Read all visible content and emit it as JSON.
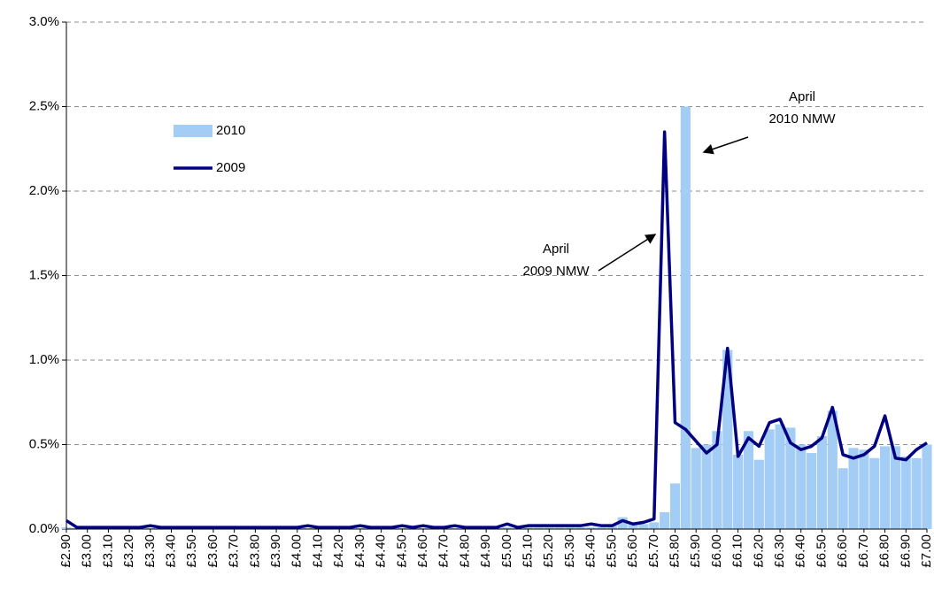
{
  "chart_data": {
    "type": "bar-line",
    "categories": [
      "£2.90",
      null,
      "£3.00",
      null,
      "£3.10",
      null,
      "£3.20",
      null,
      "£3.30",
      null,
      "£3.40",
      null,
      "£3.50",
      null,
      "£3.60",
      null,
      "£3.70",
      null,
      "£3.80",
      null,
      "£3.90",
      null,
      "£4.00",
      null,
      "£4.10",
      null,
      "£4.20",
      null,
      "£4.30",
      null,
      "£4.40",
      null,
      "£4.50",
      null,
      "£4.60",
      null,
      "£4.70",
      null,
      "£4.80",
      null,
      "£4.90",
      null,
      "£5.00",
      null,
      "£5.10",
      null,
      "£5.20",
      null,
      "£5.30",
      null,
      "£5.40",
      null,
      "£5.50",
      null,
      "£5.60",
      null,
      "£5.70",
      null,
      "£5.80",
      null,
      "£5.90",
      null,
      "£6.00",
      null,
      "£6.10",
      null,
      "£6.20",
      null,
      "£6.30",
      null,
      "£6.40",
      null,
      "£6.50",
      null,
      "£6.60",
      null,
      "£6.70",
      null,
      "£6.80",
      null,
      "£6.90",
      null,
      "£7.00"
    ],
    "series": [
      {
        "name": "2010",
        "kind": "bar",
        "color": "#a3cdf5",
        "values": [
          0.01,
          0.005,
          0.005,
          0.005,
          0.005,
          0.005,
          0.005,
          0.005,
          0.005,
          0.005,
          0.005,
          0.005,
          0.005,
          0.005,
          0.005,
          0.005,
          0.005,
          0.005,
          0.005,
          0.005,
          0.005,
          0.005,
          0.005,
          0.005,
          0.005,
          0.005,
          0.005,
          0.005,
          0.005,
          0.005,
          0.005,
          0.005,
          0.005,
          0.005,
          0.005,
          0.005,
          0.005,
          0.005,
          0.005,
          0.005,
          0.01,
          0.005,
          0.01,
          0.005,
          0.01,
          0.01,
          0.01,
          0.01,
          0.01,
          0.01,
          0.01,
          0.01,
          0.02,
          0.07,
          0.04,
          0.03,
          0.04,
          0.1,
          0.27,
          2.5,
          0.48,
          0.5,
          0.58,
          1.06,
          0.44,
          0.58,
          0.41,
          0.59,
          0.62,
          0.6,
          0.5,
          0.45,
          0.55,
          0.7,
          0.36,
          0.48,
          0.47,
          0.42,
          0.49,
          0.49,
          0.43,
          0.42,
          0.5
        ]
      },
      {
        "name": "2009",
        "kind": "line",
        "color": "#000080",
        "values": [
          0.05,
          0.01,
          0.01,
          0.01,
          0.01,
          0.01,
          0.01,
          0.01,
          0.02,
          0.01,
          0.01,
          0.01,
          0.01,
          0.01,
          0.01,
          0.01,
          0.01,
          0.01,
          0.01,
          0.01,
          0.01,
          0.01,
          0.01,
          0.02,
          0.01,
          0.01,
          0.01,
          0.01,
          0.02,
          0.01,
          0.01,
          0.01,
          0.02,
          0.01,
          0.02,
          0.01,
          0.01,
          0.02,
          0.01,
          0.01,
          0.01,
          0.01,
          0.03,
          0.01,
          0.02,
          0.02,
          0.02,
          0.02,
          0.02,
          0.02,
          0.03,
          0.02,
          0.02,
          0.05,
          0.03,
          0.04,
          0.06,
          2.35,
          0.63,
          0.59,
          0.52,
          0.45,
          0.5,
          1.07,
          0.43,
          0.54,
          0.49,
          0.63,
          0.65,
          0.51,
          0.47,
          0.49,
          0.54,
          0.72,
          0.44,
          0.42,
          0.44,
          0.49,
          0.67,
          0.42,
          0.41,
          0.47,
          0.51
        ]
      }
    ],
    "ylim": [
      0,
      3
    ],
    "yticks": [
      {
        "value": 0,
        "label": "0.0%"
      },
      {
        "value": 0.5,
        "label": "0.5%"
      },
      {
        "value": 1,
        "label": "1.0%"
      },
      {
        "value": 1.5,
        "label": "1.5%"
      },
      {
        "value": 2,
        "label": "2.0%"
      },
      {
        "value": 2.5,
        "label": "2.5%"
      },
      {
        "value": 3,
        "label": "3.0%"
      }
    ],
    "grid": true,
    "legend": "upper-left",
    "annotations": [
      {
        "lines": [
          "April",
          "2010 NMW"
        ]
      },
      {
        "lines": [
          "April",
          "2009 NMW"
        ]
      }
    ]
  }
}
